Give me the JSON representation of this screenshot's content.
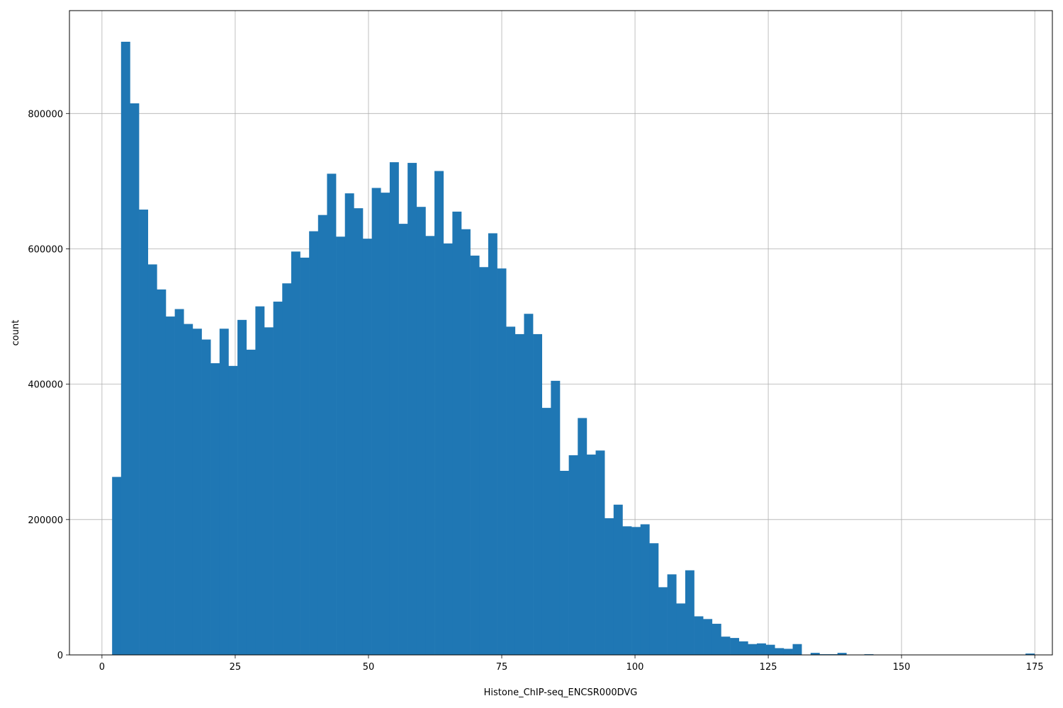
{
  "chart_data": {
    "type": "bar",
    "title": "",
    "xlabel": "Histone_ChIP-seq_ENCSR000DVG",
    "ylabel": "count",
    "xlim": [
      -6.1,
      178.3
    ],
    "ylim": [
      0,
      952000
    ],
    "x_ticks": [
      0,
      25,
      50,
      75,
      100,
      125,
      150,
      175
    ],
    "y_ticks": [
      0,
      200000,
      400000,
      600000,
      800000
    ],
    "grid": true,
    "bar_color": "#1f77b4",
    "bin_width": 1.68,
    "bin_start": 1.9,
    "values": [
      263000,
      906000,
      815000,
      658000,
      577000,
      540000,
      500000,
      511000,
      489000,
      482000,
      466000,
      431000,
      482000,
      427000,
      495000,
      451000,
      515000,
      484000,
      522000,
      549000,
      596000,
      587000,
      626000,
      650000,
      711000,
      618000,
      682000,
      660000,
      615000,
      690000,
      683000,
      728000,
      637000,
      727000,
      662000,
      619000,
      715000,
      608000,
      655000,
      629000,
      590000,
      573000,
      623000,
      571000,
      485000,
      474000,
      504000,
      474000,
      365000,
      405000,
      272000,
      295000,
      350000,
      296000,
      302000,
      202000,
      222000,
      190000,
      189000,
      193000,
      165000,
      100000,
      119000,
      76000,
      125000,
      57000,
      53000,
      46000,
      27000,
      25000,
      20000,
      16000,
      17000,
      15000,
      10000,
      9000,
      16000,
      0,
      3000,
      1000,
      1000,
      3000,
      0,
      0,
      1000,
      0,
      0,
      0,
      0,
      0,
      0,
      0,
      0,
      0,
      0,
      0,
      0,
      0,
      0,
      0,
      0,
      0,
      2000
    ]
  }
}
